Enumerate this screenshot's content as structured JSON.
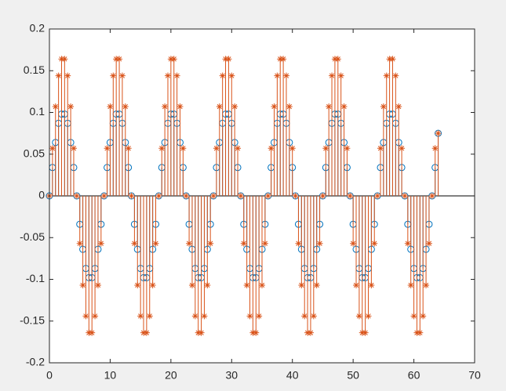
{
  "chart_data": {
    "type": "stem",
    "x": [
      0,
      0.5,
      1,
      1.5,
      2,
      2.5,
      3,
      3.5,
      4,
      4.5,
      5,
      5.5,
      6,
      6.5,
      7,
      7.5,
      8,
      8.5,
      9,
      9.5,
      10,
      10.5,
      11,
      11.5,
      12,
      12.5,
      13,
      13.5,
      14,
      14.5,
      15,
      15.5,
      16,
      16.5,
      17,
      17.5,
      18,
      18.5,
      19,
      19.5,
      20,
      20.5,
      21,
      21.5,
      22,
      22.5,
      23,
      23.5,
      24,
      24.5,
      25,
      25.5,
      26,
      26.5,
      27,
      27.5,
      28,
      28.5,
      29,
      29.5,
      30,
      30.5,
      31,
      31.5,
      32,
      32.5,
      33,
      33.5,
      34,
      34.5,
      35,
      35.5,
      36,
      36.5,
      37,
      37.5,
      38,
      38.5,
      39,
      39.5,
      40,
      40.5,
      41,
      41.5,
      42,
      42.5,
      43,
      43.5,
      44,
      44.5,
      45,
      45.5,
      46,
      46.5,
      47,
      47.5,
      48,
      48.5,
      49,
      49.5,
      50,
      50.5,
      51,
      51.5,
      52,
      52.5,
      53,
      53.5,
      54,
      54.5,
      55,
      55.5,
      56,
      56.5,
      57,
      57.5,
      58,
      58.5,
      59,
      59.5,
      60,
      60.5,
      61,
      61.5,
      62,
      62.5,
      63,
      63.5,
      64
    ],
    "series": [
      {
        "color": "#0072bd",
        "marker": "circle",
        "values": [
          0,
          0.034,
          0.064,
          0.087,
          0.098,
          0.098,
          0.087,
          0.064,
          0.034,
          0,
          -0.034,
          -0.064,
          -0.087,
          -0.098,
          -0.098,
          -0.087,
          -0.064,
          -0.034,
          0,
          0.034,
          0.064,
          0.087,
          0.098,
          0.098,
          0.087,
          0.064,
          0.034,
          0,
          -0.034,
          -0.064,
          -0.087,
          -0.098,
          -0.098,
          -0.087,
          -0.064,
          -0.034,
          0,
          0.034,
          0.064,
          0.087,
          0.098,
          0.098,
          0.087,
          0.064,
          0.034,
          0,
          -0.034,
          -0.064,
          -0.087,
          -0.098,
          -0.098,
          -0.087,
          -0.064,
          -0.034,
          0,
          0.034,
          0.064,
          0.087,
          0.098,
          0.098,
          0.087,
          0.064,
          0.034,
          0,
          -0.034,
          -0.064,
          -0.087,
          -0.098,
          -0.098,
          -0.087,
          -0.064,
          -0.034,
          0,
          0.034,
          0.064,
          0.087,
          0.098,
          0.098,
          0.087,
          0.064,
          0.034,
          0,
          -0.034,
          -0.064,
          -0.087,
          -0.098,
          -0.098,
          -0.087,
          -0.064,
          -0.034,
          0,
          0.034,
          0.064,
          0.087,
          0.098,
          0.098,
          0.087,
          0.064,
          0.034,
          0,
          -0.034,
          -0.064,
          -0.087,
          -0.098,
          -0.098,
          -0.087,
          -0.064,
          -0.034,
          0,
          0.034,
          0.064,
          0.087,
          0.098,
          0.098,
          0.087,
          0.064,
          0.034,
          0,
          -0.034,
          -0.064,
          -0.087,
          -0.098,
          -0.098,
          -0.087,
          -0.064,
          -0.034,
          0,
          0.034,
          0.075
        ]
      },
      {
        "color": "#d95319",
        "marker": "star",
        "values": [
          0,
          0.057,
          0.107,
          0.144,
          0.164,
          0.164,
          0.144,
          0.107,
          0.057,
          0,
          -0.057,
          -0.107,
          -0.144,
          -0.164,
          -0.164,
          -0.144,
          -0.107,
          -0.057,
          0,
          0.057,
          0.107,
          0.144,
          0.164,
          0.164,
          0.144,
          0.107,
          0.057,
          0,
          -0.057,
          -0.107,
          -0.144,
          -0.164,
          -0.164,
          -0.144,
          -0.107,
          -0.057,
          0,
          0.057,
          0.107,
          0.144,
          0.164,
          0.164,
          0.144,
          0.107,
          0.057,
          0,
          -0.057,
          -0.107,
          -0.144,
          -0.164,
          -0.164,
          -0.144,
          -0.107,
          -0.057,
          0,
          0.057,
          0.107,
          0.144,
          0.164,
          0.164,
          0.144,
          0.107,
          0.057,
          0,
          -0.057,
          -0.107,
          -0.144,
          -0.164,
          -0.164,
          -0.144,
          -0.107,
          -0.057,
          0,
          0.057,
          0.107,
          0.144,
          0.164,
          0.164,
          0.144,
          0.107,
          0.057,
          0,
          -0.057,
          -0.107,
          -0.144,
          -0.164,
          -0.164,
          -0.144,
          -0.107,
          -0.057,
          0,
          0.057,
          0.107,
          0.144,
          0.164,
          0.164,
          0.144,
          0.107,
          0.057,
          0,
          -0.057,
          -0.107,
          -0.144,
          -0.164,
          -0.164,
          -0.144,
          -0.107,
          -0.057,
          0,
          0.057,
          0.107,
          0.144,
          0.164,
          0.164,
          0.144,
          0.107,
          0.057,
          0,
          -0.057,
          -0.107,
          -0.144,
          -0.164,
          -0.164,
          -0.144,
          -0.107,
          -0.057,
          0,
          0.057,
          0.075
        ]
      }
    ],
    "xlim": [
      0,
      70
    ],
    "xticks": [
      0,
      10,
      20,
      30,
      40,
      50,
      60,
      70
    ],
    "ylim": [
      -0.2,
      0.2
    ],
    "yticks": [
      -0.2,
      -0.15,
      -0.1,
      -0.05,
      0,
      0.05,
      0.1,
      0.15,
      0.2
    ],
    "grid": false
  }
}
